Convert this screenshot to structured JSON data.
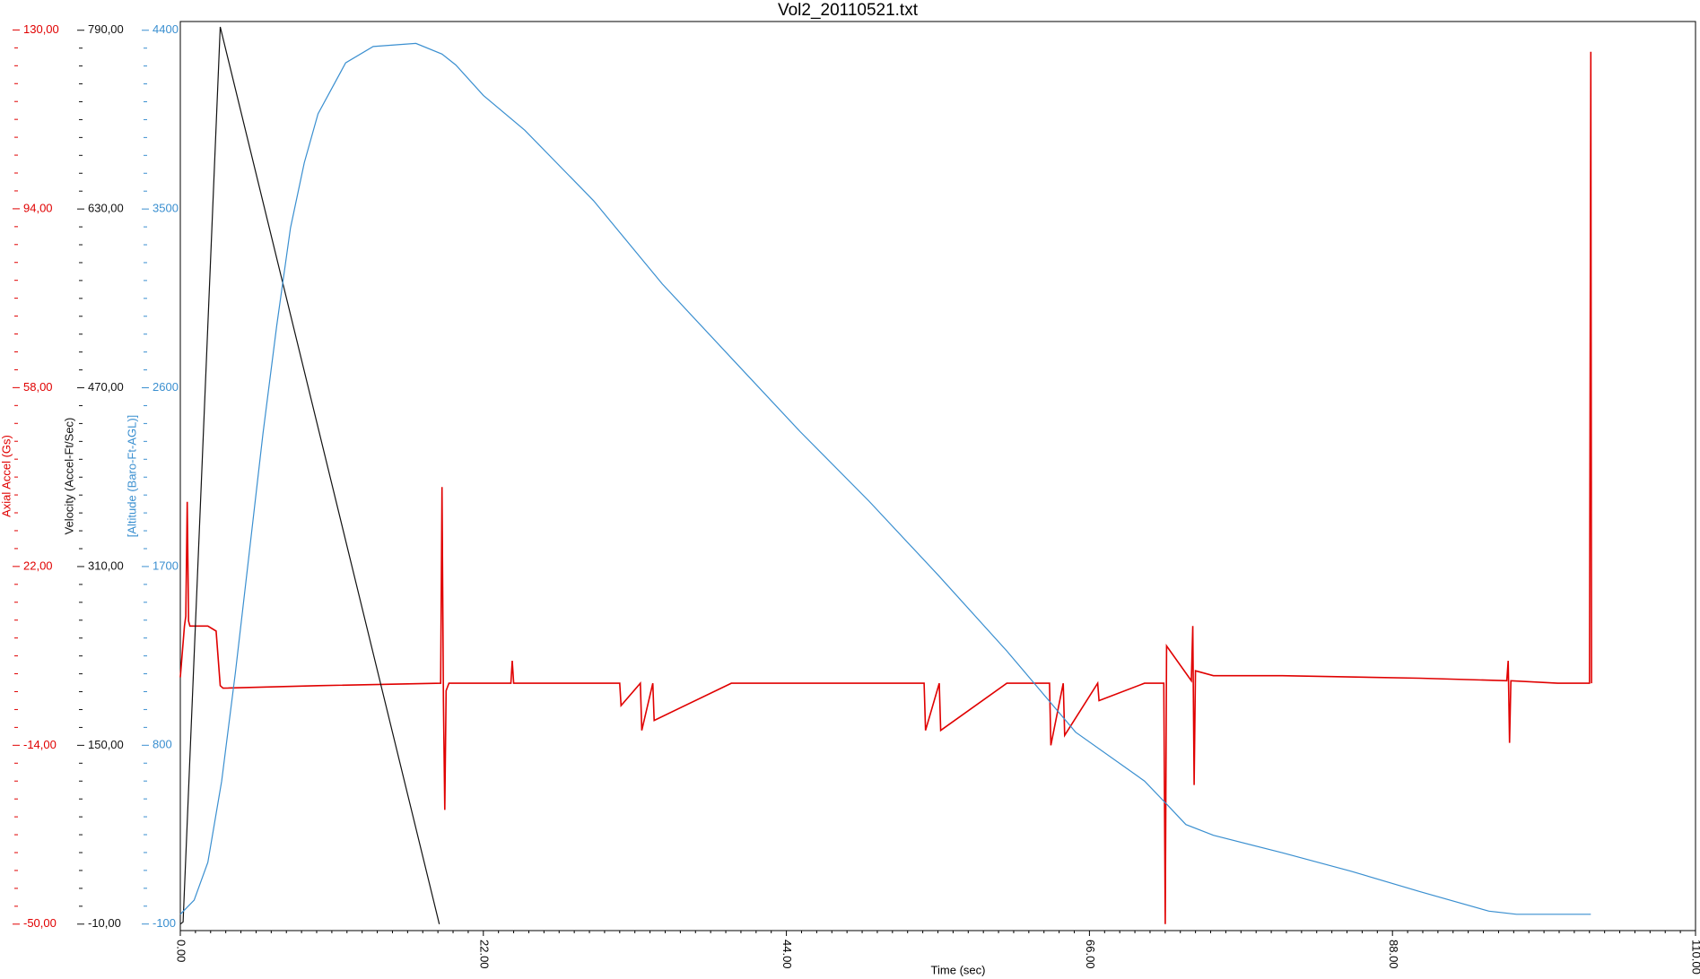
{
  "chart_data": {
    "type": "line",
    "title": "Vol2_20110521.txt",
    "xlabel": "Time (sec)",
    "ylabel": "Axial Accel (Gs)",
    "y2label": "Velocity (Accel-Ft/Sec)",
    "y3label": "[Altitude (Baro-Ft-AGL)]",
    "xlim": [
      0,
      110
    ],
    "xticks": [
      {
        "value": 0,
        "label": "0.00"
      },
      {
        "value": 22,
        "label": "22.00"
      },
      {
        "value": 44,
        "label": "44.00"
      },
      {
        "value": 66,
        "label": "66.00"
      },
      {
        "value": 88,
        "label": "88.00"
      },
      {
        "value": 110,
        "label": "110.00"
      }
    ],
    "ylim": [
      -51.3,
      131.7
    ],
    "yticks": [
      {
        "value": -50,
        "label": "-50,00"
      },
      {
        "value": -14,
        "label": "-14,00"
      },
      {
        "value": 22,
        "label": "22,00"
      },
      {
        "value": 58,
        "label": "58,00"
      },
      {
        "value": 94,
        "label": "94,00"
      },
      {
        "value": 130,
        "label": "130,00"
      }
    ],
    "y2lim": [
      -15.8,
      797.8
    ],
    "y2ticks": [
      {
        "value": -10,
        "label": "-10,00"
      },
      {
        "value": 150,
        "label": "150,00"
      },
      {
        "value": 310,
        "label": "310,00"
      },
      {
        "value": 470,
        "label": "470,00"
      },
      {
        "value": 630,
        "label": "630,00"
      },
      {
        "value": 790,
        "label": "790,00"
      }
    ],
    "y3lim": [
      -133,
      4444
    ],
    "y3ticks": [
      -100,
      800,
      1700,
      2600,
      3500,
      4400
    ],
    "series": [
      {
        "name": "Axial Accel (Gs)",
        "color": "#e00000",
        "axis": "y",
        "x": [
          0,
          0.3,
          0.4,
          0.5,
          0.6,
          0.7,
          1,
          2,
          2.6,
          2.9,
          3.1,
          10,
          18.9,
          19,
          19.1,
          19.2,
          19.3,
          19.5,
          24,
          24.1,
          24.2,
          30,
          31.9,
          32,
          33.4,
          33.5,
          34.3,
          34.4,
          40,
          54,
          54.1,
          55.1,
          55.2,
          60,
          63.1,
          63.2,
          64.1,
          64.2,
          66.6,
          66.7,
          70,
          71.4,
          71.5,
          71.6,
          73.4,
          73.5,
          73.6,
          73.7,
          75,
          80,
          90,
          96.3,
          96.4,
          96.5,
          96.6,
          100,
          102.3,
          102.4,
          102.45
        ],
        "values": [
          -0.3,
          10,
          12,
          35,
          11,
          10,
          10,
          10,
          9,
          -2,
          -2.5,
          -2,
          -1.5,
          38,
          -5,
          -27,
          -3,
          -1.5,
          -1.5,
          3,
          -1.5,
          -1.5,
          -1.5,
          -6,
          -1.5,
          -11,
          -1.5,
          -9,
          -1.5,
          -1.5,
          -11,
          -1.5,
          -11,
          -1.5,
          -1.5,
          -14,
          -1.5,
          -12,
          -1.5,
          -5,
          -1.5,
          -1.5,
          -50,
          6,
          -1,
          10,
          -22,
          1,
          0,
          0,
          -0.5,
          -1,
          3,
          -13.5,
          -1,
          -1.5,
          -1.5,
          125.6,
          -1.5
        ]
      },
      {
        "name": "Velocity (Accel-Ft/Sec)",
        "color": "#111111",
        "axis": "y2",
        "x": [
          0,
          0.2,
          2.9,
          18.8
        ],
        "values": [
          -10,
          -8,
          793,
          -10
        ]
      },
      {
        "name": "[Altitude (Baro-Ft-AGL)]",
        "color": "#3a8fd0",
        "axis": "y3",
        "x": [
          0,
          1,
          2,
          3,
          4,
          5,
          6,
          7,
          8,
          9,
          10,
          12,
          14,
          17.1,
          19,
          20,
          22,
          25,
          30,
          35,
          40,
          45,
          50,
          55,
          60,
          65,
          70,
          71.5,
          73,
          75,
          80,
          85,
          90,
          95,
          97,
          102.4
        ],
        "values": [
          -51,
          20,
          211,
          620,
          1166,
          1767,
          2368,
          2914,
          3405,
          3733,
          3979,
          4236,
          4318,
          4334,
          4280,
          4225,
          4072,
          3897,
          3542,
          3122,
          2750,
          2379,
          2029,
          1658,
          1275,
          866,
          620,
          511,
          401,
          347,
          259,
          166,
          63,
          -35,
          -51,
          -51
        ]
      }
    ]
  }
}
